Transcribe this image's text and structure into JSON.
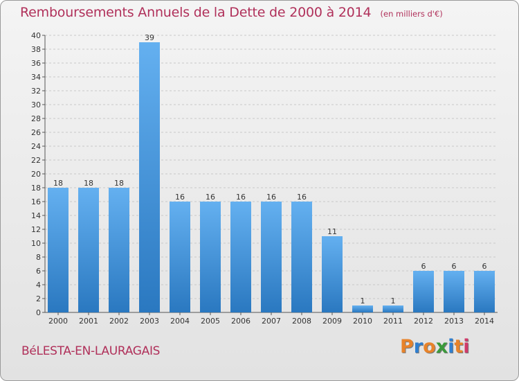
{
  "header": {
    "title": "Remboursements Annuels de la Dette de 2000 à 2014",
    "subtitle": "(en milliers d'€)"
  },
  "footer": {
    "town": "BéLESTA-EN-LAURAGAIS",
    "logo_text": "Proxiti",
    "logo_letters": [
      {
        "ch": "P",
        "color": "#e8832a"
      },
      {
        "ch": "r",
        "color": "#2f7fd0"
      },
      {
        "ch": "o",
        "color": "#e8832a"
      },
      {
        "ch": "x",
        "color": "#3a9a3a"
      },
      {
        "ch": "i",
        "color": "#2f7fd0"
      },
      {
        "ch": "t",
        "color": "#e8832a"
      },
      {
        "ch": "i",
        "color": "#d03a6a"
      }
    ]
  },
  "colors": {
    "bar_top": "#64b0f0",
    "bar_bottom": "#2a78c0",
    "accent": "#b0305a"
  },
  "chart_data": {
    "type": "bar",
    "categories": [
      "2000",
      "2001",
      "2002",
      "2003",
      "2004",
      "2005",
      "2006",
      "2007",
      "2008",
      "2009",
      "2010",
      "2011",
      "2012",
      "2013",
      "2014"
    ],
    "values": [
      18,
      18,
      18,
      39,
      16,
      16,
      16,
      16,
      16,
      11,
      1,
      1,
      6,
      6,
      6
    ],
    "ylim": [
      0,
      40
    ],
    "yticks": [
      0,
      2,
      4,
      6,
      8,
      10,
      12,
      14,
      16,
      18,
      20,
      22,
      24,
      26,
      28,
      30,
      32,
      34,
      36,
      38,
      40
    ],
    "grid": true,
    "title": "Remboursements Annuels de la Dette de 2000 à 2014",
    "subtitle": "(en milliers d'€)",
    "xlabel": "",
    "ylabel": ""
  }
}
